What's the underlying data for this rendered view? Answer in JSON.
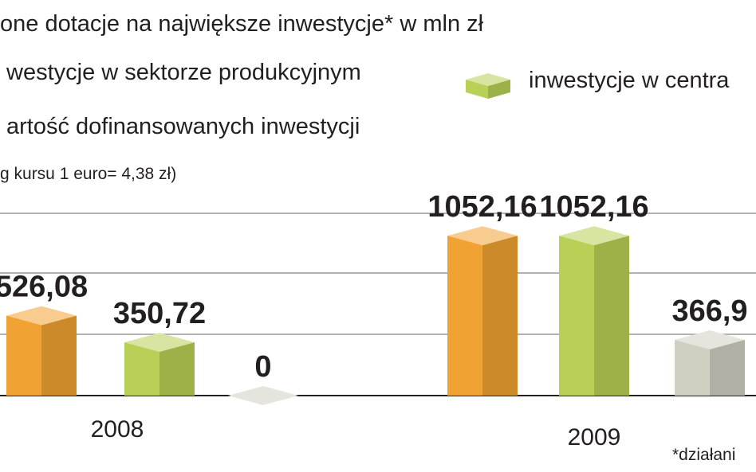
{
  "chart_data": {
    "type": "bar3d",
    "title": "one dotacje na największe inwestycje* w mln zł",
    "note": "g kursu 1 euro= 4,38 zł)",
    "footnote": "*działani",
    "categories": [
      "2008",
      "2009"
    ],
    "series": [
      {
        "name": "westycje w sektorze produkcyjnym",
        "color": "#f0a232",
        "values": [
          526.08,
          1052.16
        ],
        "value_labels": [
          "526,08",
          "1052,16"
        ]
      },
      {
        "name": "inwestycje w centra",
        "color": "#b8d055",
        "values": [
          350.72,
          1052.16
        ],
        "value_labels": [
          "350,72",
          "1052,16"
        ]
      },
      {
        "name": "artość dofinansowanych inwestycji",
        "color": "#cfcfc2",
        "values": [
          0,
          366.9
        ],
        "value_labels": [
          "0",
          "366,9"
        ]
      }
    ],
    "ylim": [
      0,
      1200
    ]
  }
}
